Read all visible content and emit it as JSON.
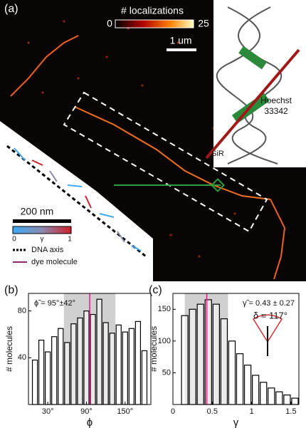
{
  "panel_a": {
    "label": "(a)",
    "colorbar_title": "# localizations",
    "colorbar_min": "0",
    "colorbar_max": "25",
    "scalebar": "1 um",
    "hoechst_line1": "Hoechst",
    "hoechst_line2": "33342",
    "sir": "SiR",
    "inset_scalebar": "200 nm",
    "gamma_min": "0",
    "gamma_symbol": "γ",
    "gamma_max": "1",
    "legend_dna": "DNA axis",
    "legend_dye": "dye molecule"
  },
  "chart_data": [
    {
      "type": "histogram",
      "title": "(b)",
      "xlabel": "ϕ",
      "ylabel": "# molecules",
      "annotation": "ϕ̃ = 95°±42°",
      "bins": [
        5,
        15,
        25,
        35,
        45,
        55,
        65,
        75,
        85,
        95,
        105,
        115,
        125,
        135,
        145,
        155,
        165,
        175,
        185
      ],
      "values": [
        38,
        55,
        45,
        58,
        65,
        53,
        69,
        74,
        80,
        77,
        90,
        70,
        61,
        68,
        62,
        65,
        71,
        46
      ],
      "color": "#ffffff",
      "xlim": [
        0,
        190
      ],
      "ylim": [
        0,
        95
      ],
      "xticks": [
        {
          "value": 30,
          "label": "30°"
        },
        {
          "value": 90,
          "label": "90°"
        },
        {
          "value": 150,
          "label": "150°"
        }
      ],
      "yticks": [
        40,
        80
      ],
      "shaded_range": [
        55,
        135
      ],
      "marker": 95
    },
    {
      "type": "histogram",
      "title": "(c)",
      "xlabel": "γ",
      "ylabel": "# molecules",
      "annotation": "γ̃ = 0.43 ± 0.27",
      "annotation2": "δ = 117°",
      "bins": [
        0.1,
        0.2,
        0.3,
        0.4,
        0.5,
        0.6,
        0.7,
        0.8,
        0.9,
        1.0,
        1.1,
        1.2,
        1.3,
        1.4,
        1.5,
        1.6
      ],
      "values": [
        140,
        150,
        158,
        165,
        158,
        135,
        100,
        80,
        62,
        46,
        35,
        26,
        20,
        15,
        10
      ],
      "color": "#ffffff",
      "xlim": [
        0,
        1.6
      ],
      "ylim": [
        0,
        175
      ],
      "xticks": [
        0,
        0.5,
        1,
        1.5
      ],
      "yticks": [
        50,
        100,
        150
      ],
      "shaded_range": [
        0.15,
        0.7
      ],
      "marker": 0.43
    }
  ]
}
